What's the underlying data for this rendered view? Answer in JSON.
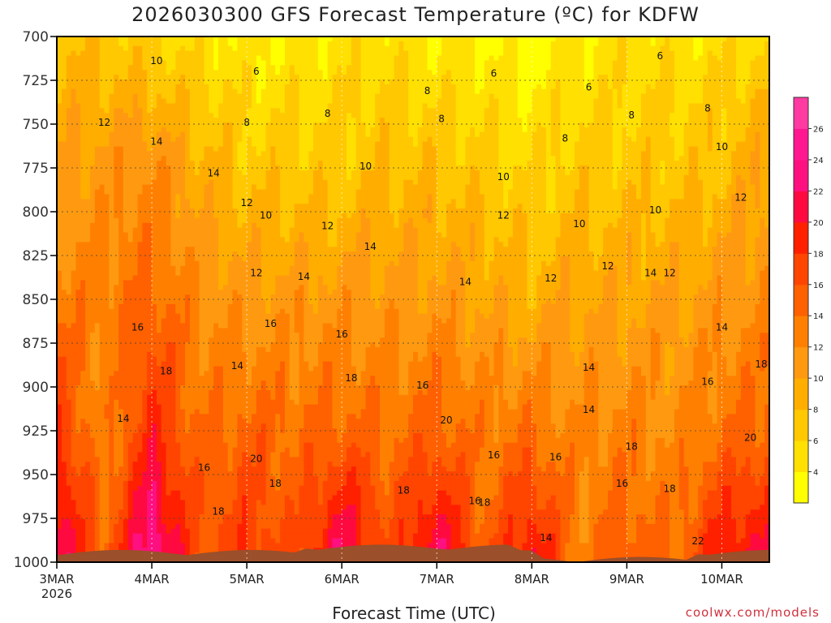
{
  "chart_data": {
    "type": "heatmap",
    "title": "2026030300 GFS Forecast Temperature (ºC) for KDFW",
    "xlabel": "Forecast Time (UTC)",
    "ylabel": "",
    "credit": "coolwx.com/models",
    "x_range": [
      0,
      7.5
    ],
    "x_ticks": [
      {
        "value": 0,
        "label": "3MAR",
        "sublabel": "2026"
      },
      {
        "value": 1,
        "label": "4MAR"
      },
      {
        "value": 2,
        "label": "5MAR"
      },
      {
        "value": 3,
        "label": "6MAR"
      },
      {
        "value": 4,
        "label": "7MAR"
      },
      {
        "value": 5,
        "label": "8MAR"
      },
      {
        "value": 6,
        "label": "9MAR"
      },
      {
        "value": 7,
        "label": "10MAR"
      }
    ],
    "y_range": [
      700,
      1000
    ],
    "y_ticks": [
      "700",
      "725",
      "750",
      "775",
      "800",
      "825",
      "850",
      "875",
      "900",
      "925",
      "950",
      "975",
      "1000"
    ],
    "colorbar": {
      "labels": [
        "4",
        "6",
        "8",
        "10",
        "12",
        "14",
        "16",
        "18",
        "20",
        "22",
        "24",
        "26"
      ],
      "levels": [
        4,
        6,
        8,
        10,
        12,
        14,
        16,
        18,
        20,
        22,
        24,
        26,
        28
      ],
      "colors": [
        "#ffff00",
        "#ffe000",
        "#ffc800",
        "#ffae00",
        "#ff9a10",
        "#ff8000",
        "#ff6000",
        "#ff4500",
        "#ff2000",
        "#ff0a40",
        "#ff1080",
        "#ff1890",
        "#ff3aa0"
      ]
    },
    "profile_x": [
      0,
      0.5,
      1,
      1.5,
      2,
      2.5,
      3,
      3.5,
      4,
      4.5,
      5,
      5.5,
      6,
      6.5,
      7,
      7.5
    ],
    "profile_pressure": [
      700,
      775,
      850,
      925,
      1000
    ],
    "temperature_profiles": [
      [
        10,
        12,
        15,
        20,
        25
      ],
      [
        9,
        13,
        15,
        14,
        17
      ],
      [
        8,
        14,
        17,
        21,
        27
      ],
      [
        7,
        11,
        14,
        16,
        18
      ],
      [
        6,
        9,
        13,
        17,
        20
      ],
      [
        6,
        9,
        13,
        16,
        18
      ],
      [
        7,
        9,
        13,
        17,
        25
      ],
      [
        7,
        10,
        13,
        16,
        18
      ],
      [
        6,
        10,
        13,
        17,
        25
      ],
      [
        6,
        9,
        12,
        15,
        17
      ],
      [
        5,
        8,
        11,
        16,
        23
      ],
      [
        6,
        9,
        12,
        14,
        15
      ],
      [
        7,
        9,
        12,
        15,
        18
      ],
      [
        7,
        9,
        12,
        14,
        16
      ],
      [
        7,
        10,
        13,
        16,
        22
      ],
      [
        8,
        12,
        14,
        17,
        23
      ]
    ],
    "contour_labels": [
      {
        "x": 1.05,
        "p": 714,
        "text": "10"
      },
      {
        "x": 2.1,
        "p": 720,
        "text": "6"
      },
      {
        "x": 3.9,
        "p": 731,
        "text": "8"
      },
      {
        "x": 4.6,
        "p": 721,
        "text": "6"
      },
      {
        "x": 5.6,
        "p": 729,
        "text": "6"
      },
      {
        "x": 6.35,
        "p": 711,
        "text": "6"
      },
      {
        "x": 6.85,
        "p": 741,
        "text": "8"
      },
      {
        "x": 0.5,
        "p": 749,
        "text": "12"
      },
      {
        "x": 1.05,
        "p": 760,
        "text": "14"
      },
      {
        "x": 1.65,
        "p": 778,
        "text": "14"
      },
      {
        "x": 2.0,
        "p": 795,
        "text": "12"
      },
      {
        "x": 2.0,
        "p": 749,
        "text": "8"
      },
      {
        "x": 2.85,
        "p": 744,
        "text": "8"
      },
      {
        "x": 4.05,
        "p": 747,
        "text": "8"
      },
      {
        "x": 3.25,
        "p": 774,
        "text": "10"
      },
      {
        "x": 2.2,
        "p": 802,
        "text": "10"
      },
      {
        "x": 2.85,
        "p": 808,
        "text": "12"
      },
      {
        "x": 3.3,
        "p": 820,
        "text": "14"
      },
      {
        "x": 2.1,
        "p": 835,
        "text": "12"
      },
      {
        "x": 2.6,
        "p": 837,
        "text": "14"
      },
      {
        "x": 4.7,
        "p": 780,
        "text": "10"
      },
      {
        "x": 4.7,
        "p": 802,
        "text": "12"
      },
      {
        "x": 5.35,
        "p": 758,
        "text": "8"
      },
      {
        "x": 5.5,
        "p": 807,
        "text": "10"
      },
      {
        "x": 6.05,
        "p": 745,
        "text": "8"
      },
      {
        "x": 6.3,
        "p": 799,
        "text": "10"
      },
      {
        "x": 7.0,
        "p": 763,
        "text": "10"
      },
      {
        "x": 7.2,
        "p": 792,
        "text": "12"
      },
      {
        "x": 5.2,
        "p": 838,
        "text": "12"
      },
      {
        "x": 5.8,
        "p": 831,
        "text": "12"
      },
      {
        "x": 6.25,
        "p": 835,
        "text": "14"
      },
      {
        "x": 6.45,
        "p": 835,
        "text": "12"
      },
      {
        "x": 4.3,
        "p": 840,
        "text": "14"
      },
      {
        "x": 0.85,
        "p": 866,
        "text": "16"
      },
      {
        "x": 1.9,
        "p": 888,
        "text": "14"
      },
      {
        "x": 2.25,
        "p": 864,
        "text": "16"
      },
      {
        "x": 3.0,
        "p": 870,
        "text": "16"
      },
      {
        "x": 1.15,
        "p": 891,
        "text": "18"
      },
      {
        "x": 0.7,
        "p": 918,
        "text": "14"
      },
      {
        "x": 3.1,
        "p": 895,
        "text": "18"
      },
      {
        "x": 3.85,
        "p": 899,
        "text": "16"
      },
      {
        "x": 4.1,
        "p": 919,
        "text": "20"
      },
      {
        "x": 4.6,
        "p": 939,
        "text": "16"
      },
      {
        "x": 2.1,
        "p": 941,
        "text": "20"
      },
      {
        "x": 2.3,
        "p": 955,
        "text": "18"
      },
      {
        "x": 1.55,
        "p": 946,
        "text": "16"
      },
      {
        "x": 1.7,
        "p": 971,
        "text": "18"
      },
      {
        "x": 3.65,
        "p": 959,
        "text": "18"
      },
      {
        "x": 4.5,
        "p": 966,
        "text": "18"
      },
      {
        "x": 4.4,
        "p": 965,
        "text": "16"
      },
      {
        "x": 5.25,
        "p": 940,
        "text": "16"
      },
      {
        "x": 5.6,
        "p": 889,
        "text": "14"
      },
      {
        "x": 5.6,
        "p": 913,
        "text": "14"
      },
      {
        "x": 5.95,
        "p": 955,
        "text": "16"
      },
      {
        "x": 6.05,
        "p": 934,
        "text": "18"
      },
      {
        "x": 6.45,
        "p": 958,
        "text": "18"
      },
      {
        "x": 7.0,
        "p": 866,
        "text": "14"
      },
      {
        "x": 6.85,
        "p": 897,
        "text": "16"
      },
      {
        "x": 7.55,
        "p": 887,
        "text": "18"
      },
      {
        "x": 7.3,
        "p": 929,
        "text": "20"
      },
      {
        "x": 6.75,
        "p": 988,
        "text": "22"
      },
      {
        "x": 5.15,
        "p": 986,
        "text": "14"
      }
    ]
  }
}
